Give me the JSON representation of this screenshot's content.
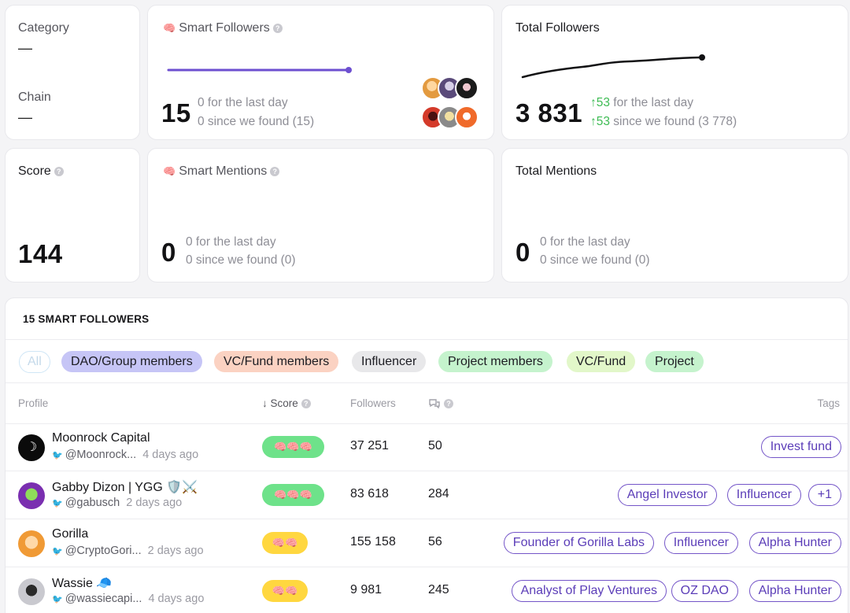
{
  "category": {
    "label": "Category",
    "value": "—"
  },
  "chain": {
    "label": "Chain",
    "value": "—"
  },
  "smart_followers": {
    "label": "Smart Followers",
    "count": "15",
    "last_day": "0 for the last day",
    "since_found": "0 since we found (15)"
  },
  "total_followers": {
    "label": "Total Followers",
    "count": "3 831",
    "last_day_delta": "↑53",
    "last_day_text": " for the last day",
    "since_delta": "↑53",
    "since_text": " since we found (3 778)"
  },
  "score": {
    "label": "Score",
    "value": "144"
  },
  "smart_mentions": {
    "label": "Smart Mentions",
    "count": "0",
    "last_day": "0 for the last day",
    "since_found": "0 since we found (0)"
  },
  "total_mentions": {
    "label": "Total Mentions",
    "count": "0",
    "last_day": "0 for the last day",
    "since_found": "0 since we found (0)"
  },
  "table": {
    "title": "15 SMART FOLLOWERS",
    "filters": [
      "All",
      "DAO/Group members",
      "VC/Fund members",
      "Influencer",
      "Project members",
      "VC/Fund",
      "Project"
    ],
    "columns": {
      "profile": "Profile",
      "score": "↓ Score",
      "followers": "Followers",
      "tags": "Tags"
    },
    "rows": [
      {
        "name": "Moonrock Capital",
        "handle": "@Moonrock...",
        "time": "4 days ago",
        "score_icons": "🧠🧠🧠",
        "followers": "37 251",
        "mentions": "50",
        "tags": [
          "Invest fund"
        ]
      },
      {
        "name": "Gabby Dizon | YGG 🛡️⚔️",
        "handle": "@gabusch",
        "time": "2 days ago",
        "score_icons": "🧠🧠🧠",
        "followers": "83 618",
        "mentions": "284",
        "tags": [
          "Angel Investor",
          "Influencer",
          "+1"
        ]
      },
      {
        "name": "Gorilla",
        "handle": "@CryptoGori...",
        "time": "2 days ago",
        "score_icons": "🧠🧠",
        "followers": "155 158",
        "mentions": "56",
        "tags": [
          "Founder of Gorilla Labs",
          "Influencer",
          "Alpha Hunter"
        ]
      },
      {
        "name": "Wassie 🧢",
        "handle": "@wassiecapi...",
        "time": "4 days ago",
        "score_icons": "🧠🧠",
        "followers": "9 981",
        "mentions": "245",
        "tags": [
          "Analyst of Play Ventures",
          "OZ DAO",
          "Alpha Hunter"
        ]
      }
    ]
  },
  "icons": {
    "help": "help-circle-icon",
    "brain": "brain-icon",
    "twitter": "twitter-bird-icon",
    "mentions": "chat-bubbles-icon"
  },
  "colors": {
    "accent": "#6d4fd0",
    "green": "#3dbb53",
    "score_high": "#6ee28a",
    "score_mid": "#ffd740"
  }
}
